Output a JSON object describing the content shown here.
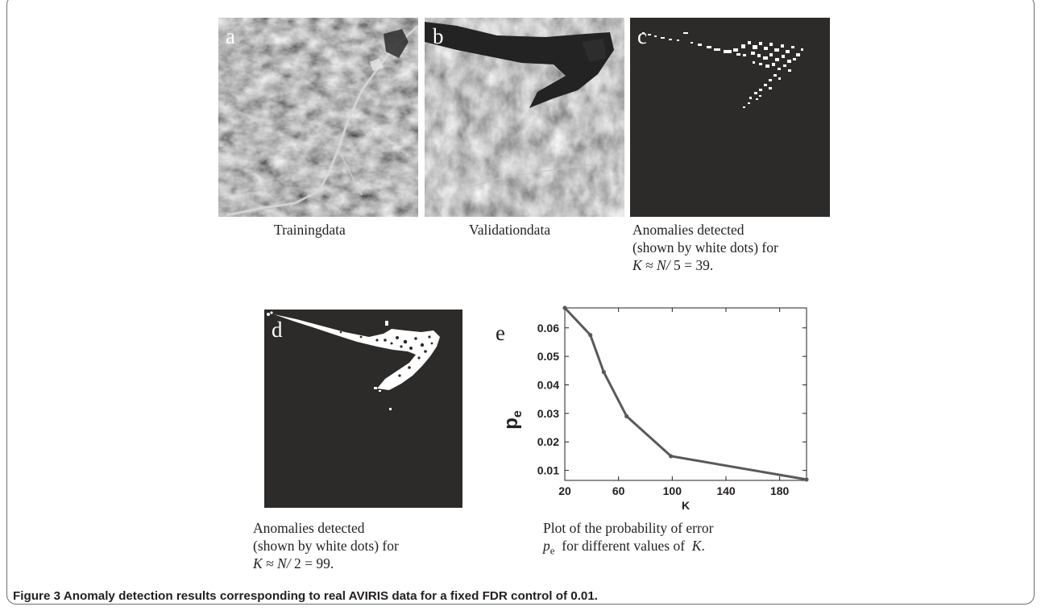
{
  "panels": {
    "a": {
      "label": "a",
      "caption": "Trainingdata"
    },
    "b": {
      "label": "b",
      "caption": "Validationdata"
    },
    "c": {
      "label": "c",
      "caption_line1": "Anomalies detected",
      "caption_line2": "(shown by white dots) for",
      "caption_k": "K",
      "caption_approx": " ≈ ",
      "caption_n": "N/",
      "caption_tail": " 5 = 39."
    },
    "d": {
      "label": "d",
      "caption_line1": "Anomalies detected",
      "caption_line2": "(shown by white dots) for",
      "caption_k": "K",
      "caption_approx": " ≈ ",
      "caption_n": "N/",
      "caption_tail": " 2 = 99."
    },
    "e": {
      "label": "e",
      "caption_line1": "Plot of the probability of error",
      "caption_pe_p": "p",
      "caption_pe_sub": "e",
      "caption_mid": "  for different values of  ",
      "caption_k": "K",
      "caption_end": "."
    }
  },
  "figure_caption": "Figure 3 Anomaly detection results corresponding to real AVIRIS data for a fixed FDR control of 0.01.",
  "chart_data": {
    "type": "line",
    "x": [
      20,
      39,
      49,
      66,
      99,
      200
    ],
    "y": [
      0.067,
      0.0575,
      0.0445,
      0.029,
      0.015,
      0.0068
    ],
    "xlabel": "K",
    "ylabel_main": "p",
    "ylabel_sub": "e",
    "xlim": [
      20,
      200
    ],
    "ylim": [
      0.0065,
      0.067
    ],
    "xticks": [
      20,
      60,
      100,
      140,
      180
    ],
    "yticks": [
      0.01,
      0.02,
      0.03,
      0.04,
      0.05,
      0.06
    ],
    "ytick_labels": [
      "0.01",
      "0.02",
      "0.03",
      "0.04",
      "0.05",
      "0.06"
    ],
    "grid": false,
    "line_color": "#58595b"
  }
}
